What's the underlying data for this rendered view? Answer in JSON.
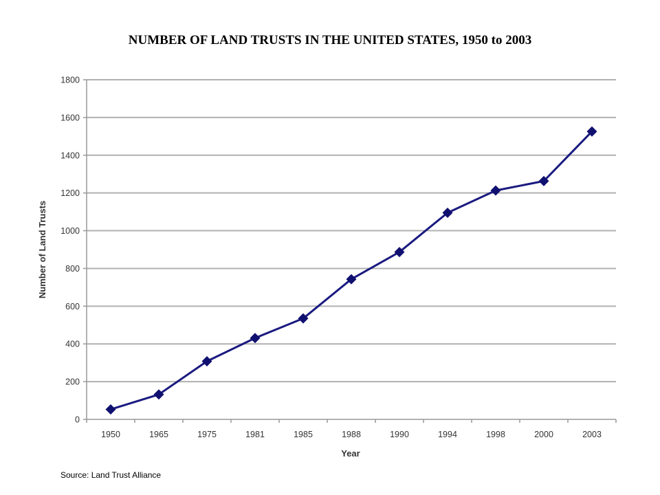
{
  "page": {
    "title": "NUMBER OF LAND TRUSTS IN THE UNITED STATES, 1950 to 2003",
    "source": "Source: Land Trust Alliance"
  },
  "chart_data": {
    "type": "line",
    "title": "NUMBER OF LAND TRUSTS IN THE UNITED STATES, 1950 to 2003",
    "xlabel": "Year",
    "ylabel": "Number of Land Trusts",
    "categories": [
      "1950",
      "1965",
      "1975",
      "1981",
      "1985",
      "1988",
      "1990",
      "1994",
      "1998",
      "2000",
      "2003"
    ],
    "series": [
      {
        "values": [
          53,
          132,
          308,
          431,
          535,
          743,
          887,
          1095,
          1213,
          1263,
          1526
        ]
      }
    ],
    "ylim": [
      0,
      1800
    ],
    "yticks": [
      0,
      200,
      400,
      600,
      800,
      1000,
      1200,
      1400,
      1600,
      1800
    ],
    "grid": true,
    "legend": "none",
    "colors": {
      "line": "#1a1a80",
      "marker": "#101070",
      "grid": "#b0b0b0",
      "axis": "#999999"
    },
    "marker": "diamond"
  }
}
